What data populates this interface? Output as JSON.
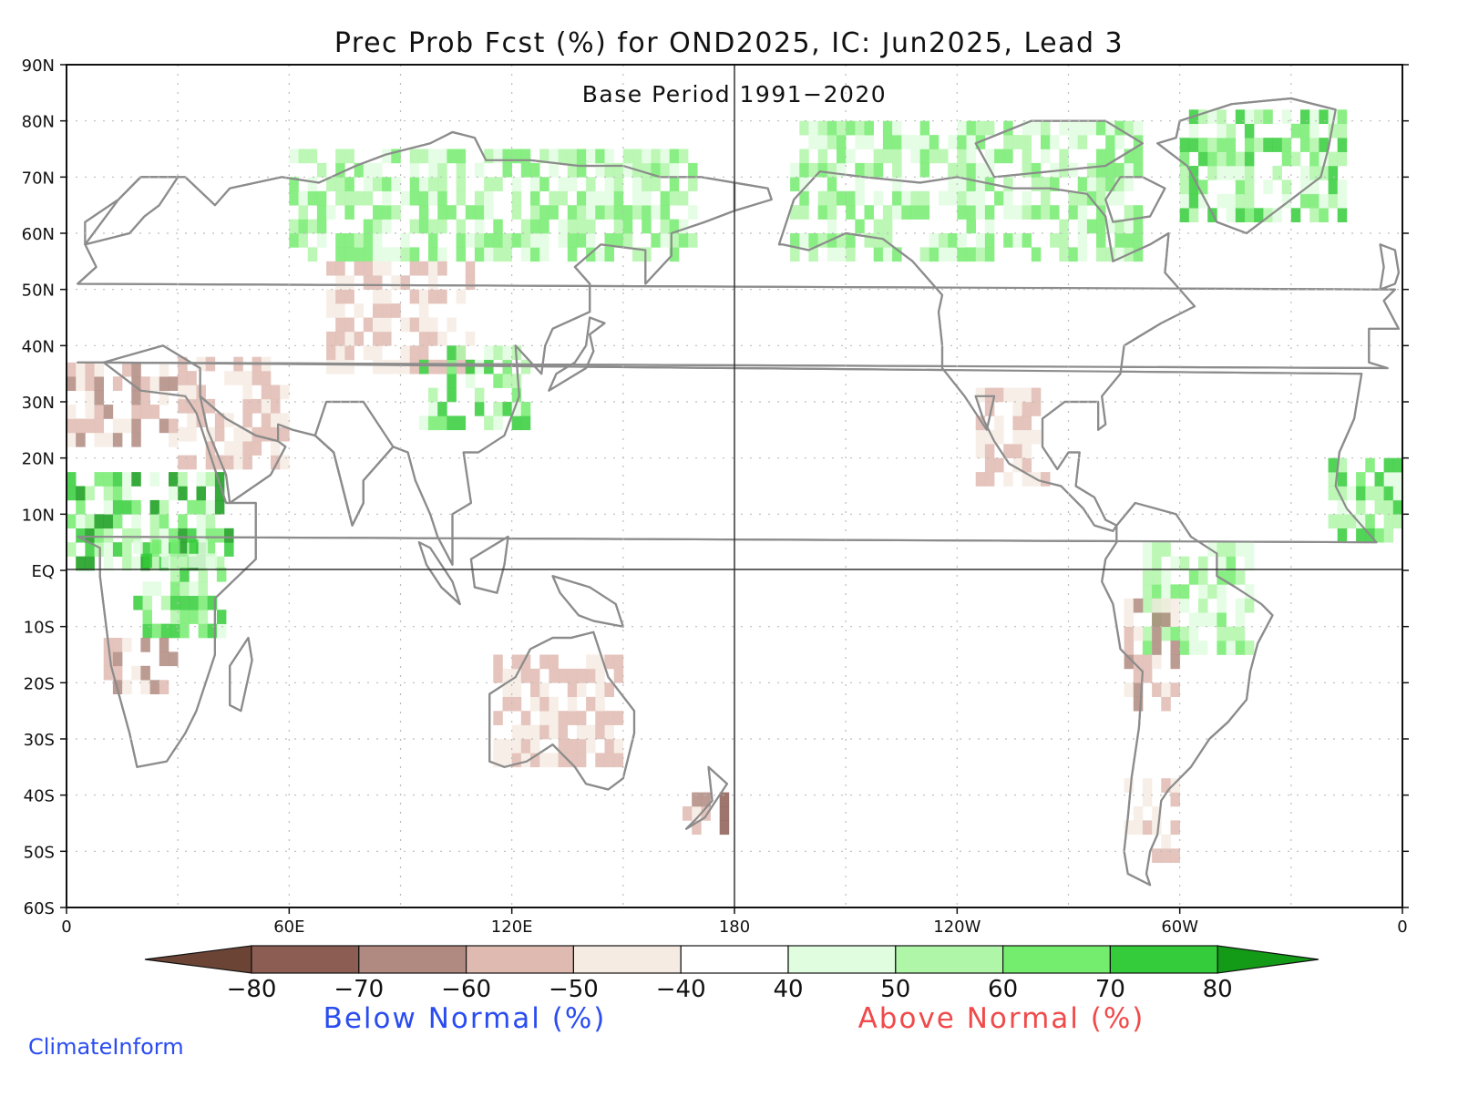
{
  "title": "Prec Prob Fcst (%) for OND2025, IC: Jun2025, Lead 3",
  "subtitle": "Base Period 1991−2020",
  "lat_labels": [
    "90N",
    "80N",
    "70N",
    "60N",
    "50N",
    "40N",
    "30N",
    "20N",
    "10N",
    "EQ",
    "10S",
    "20S",
    "30S",
    "40S",
    "50S",
    "60S"
  ],
  "lon_labels": [
    "0",
    "60E",
    "120E",
    "180",
    "120W",
    "60W",
    "0"
  ],
  "colorbar": {
    "tick_labels": [
      "−80",
      "−70",
      "−60",
      "−50",
      "−40",
      "40",
      "50",
      "60",
      "70",
      "80"
    ],
    "colors": [
      "#6b4436",
      "#8c5d52",
      "#b08a80",
      "#dfbab0",
      "#f6ebe3",
      "#ffffff",
      "#e0fde0",
      "#b0f6a8",
      "#74ec6e",
      "#34cc3a",
      "#139b18"
    ],
    "below_label": "Below Normal (%)",
    "above_label": "Above Normal (%)",
    "below_color": "#2a4cf0",
    "above_color": "#f04a4a"
  },
  "credit": "ClimateInform",
  "credit_color": "#2a4cf0",
  "map_colors": {
    "coast": "#8c8c8c",
    "lakes": "#000000",
    "grid": "#bbbbbb"
  },
  "regions": [
    {
      "name": "sahel-wet",
      "lon": [
        0,
        45
      ],
      "lat": [
        0,
        17
      ],
      "class": "above",
      "level": 4
    },
    {
      "name": "east-africa-wet",
      "lon": [
        18,
        42
      ],
      "lat": [
        -12,
        5
      ],
      "class": "above",
      "level": 3
    },
    {
      "name": "sahara-dry",
      "lon": [
        0,
        28
      ],
      "lat": [
        22,
        36
      ],
      "class": "below",
      "level": 2
    },
    {
      "name": "arabia-dry",
      "lon": [
        30,
        58
      ],
      "lat": [
        18,
        38
      ],
      "class": "below",
      "level": 1
    },
    {
      "name": "southern-africa-dry",
      "lon": [
        10,
        28
      ],
      "lat": [
        -22,
        -14
      ],
      "class": "below",
      "level": 2
    },
    {
      "name": "siberia-wet",
      "lon": [
        60,
        170
      ],
      "lat": [
        55,
        75
      ],
      "class": "above",
      "level": 2
    },
    {
      "name": "central-asia-dry",
      "lon": [
        70,
        110
      ],
      "lat": [
        35,
        55
      ],
      "class": "below",
      "level": 1
    },
    {
      "name": "tibet-wet",
      "lon": [
        95,
        125
      ],
      "lat": [
        25,
        40
      ],
      "class": "above",
      "level": 3
    },
    {
      "name": "australia-dry",
      "lon": [
        115,
        150
      ],
      "lat": [
        -35,
        -15
      ],
      "class": "below",
      "level": 1
    },
    {
      "name": "new-zealand-dry",
      "lon": [
        166,
        178
      ],
      "lat": [
        -47,
        -40
      ],
      "class": "below",
      "level": 3
    },
    {
      "name": "alaska-canada-wet",
      "lon": [
        195,
        290
      ],
      "lat": [
        55,
        78
      ],
      "class": "above",
      "level": 2
    },
    {
      "name": "greenland-wet",
      "lon": [
        300,
        345
      ],
      "lat": [
        62,
        82
      ],
      "class": "above",
      "level": 3
    },
    {
      "name": "mexico-dry",
      "lon": [
        245,
        265
      ],
      "lat": [
        15,
        32
      ],
      "class": "below",
      "level": 1
    },
    {
      "name": "amazon-wet",
      "lon": [
        290,
        320
      ],
      "lat": [
        -15,
        5
      ],
      "class": "above",
      "level": 2
    },
    {
      "name": "andes-dry",
      "lon": [
        285,
        300
      ],
      "lat": [
        -25,
        -5
      ],
      "class": "below",
      "level": 2
    },
    {
      "name": "west-africa-wet",
      "lon": [
        340,
        360
      ],
      "lat": [
        5,
        20
      ],
      "class": "above",
      "level": 3
    },
    {
      "name": "patagonia-dry",
      "lon": [
        285,
        300
      ],
      "lat": [
        -52,
        -38
      ],
      "class": "below",
      "level": 1
    }
  ]
}
